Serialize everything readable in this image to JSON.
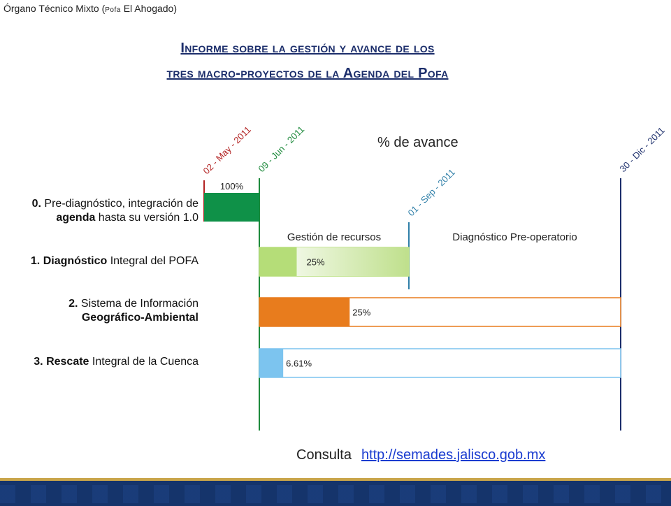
{
  "header": {
    "prefix": "Órgano Técnico Mixto (",
    "sc": "Pofa",
    "suffix": " El Ahogado)"
  },
  "title": {
    "line1": "Informe sobre la gestión y avance de los",
    "line2": "tres macro-proyectos de la Agenda del Pofa"
  },
  "chart_data": {
    "type": "gantt",
    "title": "% de avance",
    "milestones": [
      {
        "date": "02 - May - 2011",
        "color": "#b22222"
      },
      {
        "date": "09 - Jun - 2011",
        "color": "#1e8a3c"
      },
      {
        "date": "01 - Sep - 2011",
        "color": "#2f7fa8"
      },
      {
        "date": "30 - Dic - 2011",
        "color": "#1c2e6b"
      }
    ],
    "phases": [
      "Gestión de recursos",
      "Diagnóstico Pre-operatorio"
    ],
    "tasks": [
      {
        "num": "0.",
        "line1": "Pre-diagnóstico, integración de",
        "bold2": "agenda",
        "line2": " hasta su versión 1.0",
        "progress": 1.0,
        "progress_label": "100%",
        "start": "02 - May - 2011",
        "end": "09 - Jun - 2011",
        "color": "#0f9148"
      },
      {
        "num": "1.",
        "bold": "Diagnóstico",
        "rest": " Integral del POFA",
        "progress": 0.25,
        "progress_label": "25%",
        "start": "09 - Jun - 2011",
        "end": "01 - Sep - 2011",
        "color": "#b5dd78"
      },
      {
        "num": "2.",
        "line1": "Sistema de Información",
        "bold2": "Geográfico-Ambiental",
        "progress": 0.25,
        "progress_label": "25%",
        "start": "09 - Jun - 2011",
        "end": "30 - Dic - 2011",
        "color": "#e87c1d"
      },
      {
        "num": "3.",
        "bold": "Rescate",
        "rest": " Integral de la Cuenca",
        "progress": 0.0661,
        "progress_label": "6.61%",
        "start": "09 - Jun - 2011",
        "end": "30 - Dic - 2011",
        "color": "#7cc4ef"
      }
    ]
  },
  "footer": {
    "label": "Consulta",
    "link": "http://semades.jalisco.gob.mx"
  }
}
